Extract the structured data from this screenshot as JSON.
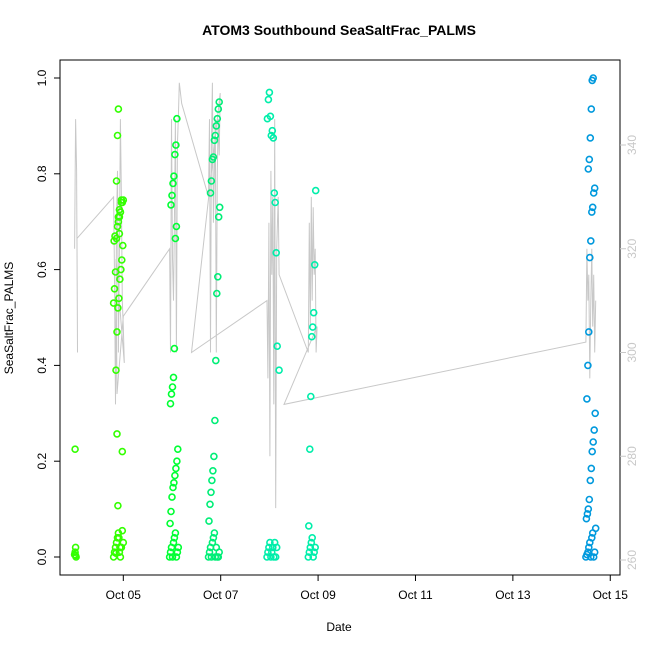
{
  "chart_data": {
    "type": "scatter",
    "title": "ATOM3 Southbound SeaSaltFrac_PALMS",
    "xlabel": "Date",
    "ylabel": "SeaSaltFrac_PALMS",
    "x_ticks": [
      "Oct 05",
      "Oct 07",
      "Oct 09",
      "Oct 11",
      "Oct 13",
      "Oct 15"
    ],
    "x_tick_days": [
      5,
      7,
      9,
      11,
      13,
      15
    ],
    "xlim_days": [
      3.7,
      15.2
    ],
    "ylim": [
      0,
      1
    ],
    "y_ticks": [
      "0.0",
      "0.2",
      "0.4",
      "0.6",
      "0.8",
      "1.0"
    ],
    "y2_ticks": [
      "260",
      "280",
      "300",
      "320",
      "340"
    ],
    "y2lim": [
      258,
      358
    ],
    "grid": false,
    "colors": {
      "seg1": "#33ff00",
      "seg2": "#00ff33",
      "seg3": "#00ee77",
      "seg4": "#00eeaa",
      "seg5": "#0099dd",
      "line": "#c8c8c8",
      "axis": "#000000",
      "right_axis": "#c8c8c8"
    },
    "series": [
      {
        "color_key": "seg1",
        "x": [
          4.0,
          4.01,
          4.02,
          4.03,
          4.01,
          4.02,
          4.8,
          4.82,
          4.84,
          4.86,
          4.88,
          4.9,
          4.92,
          4.94,
          4.96,
          4.98,
          4.85,
          4.87,
          4.89,
          4.91,
          4.93,
          4.95,
          4.97,
          4.99,
          4.81,
          4.83,
          4.9,
          4.92,
          4.94,
          4.96,
          4.98,
          5.0,
          4.86,
          4.88,
          4.9,
          4.92,
          4.8,
          4.82,
          4.84,
          4.86,
          4.88,
          4.9,
          4.92,
          4.94,
          4.96,
          4.98,
          5.0,
          4.87,
          4.89,
          4.91,
          4.93,
          4.85
        ],
        "y": [
          0.005,
          0.01,
          0.02,
          0.0,
          0.225,
          0.003,
          0.0,
          0.01,
          0.02,
          0.03,
          0.04,
          0.05,
          0.01,
          0.0,
          0.02,
          0.055,
          0.39,
          0.47,
          0.52,
          0.54,
          0.58,
          0.6,
          0.62,
          0.65,
          0.66,
          0.67,
          0.7,
          0.71,
          0.72,
          0.74,
          0.74,
          0.745,
          0.785,
          0.88,
          0.935,
          0.675,
          0.53,
          0.56,
          0.595,
          0.665,
          0.69,
          0.71,
          0.725,
          0.72,
          0.745,
          0.22,
          0.03,
          0.257,
          0.107,
          0.04,
          0.02,
          0.008
        ]
      },
      {
        "color_key": "seg2",
        "x": [
          5.95,
          5.97,
          5.99,
          6.01,
          6.03,
          6.05,
          6.07,
          6.09,
          6.11,
          6.13,
          5.96,
          5.98,
          6.0,
          6.02,
          6.04,
          6.06,
          6.08,
          6.1,
          6.12,
          5.97,
          5.99,
          6.01,
          6.03,
          6.05,
          6.07,
          6.09,
          5.98,
          6.0,
          6.02,
          6.04,
          6.06,
          6.08,
          6.1
        ],
        "y": [
          0.0,
          0.01,
          0.02,
          0.0,
          0.03,
          0.04,
          0.05,
          0.0,
          0.01,
          0.02,
          0.07,
          0.095,
          0.125,
          0.145,
          0.155,
          0.17,
          0.185,
          0.2,
          0.225,
          0.32,
          0.34,
          0.355,
          0.375,
          0.435,
          0.665,
          0.69,
          0.735,
          0.755,
          0.78,
          0.795,
          0.84,
          0.86,
          0.915
        ]
      },
      {
        "color_key": "seg3",
        "x": [
          6.75,
          6.77,
          6.79,
          6.81,
          6.83,
          6.85,
          6.87,
          6.89,
          6.91,
          6.93,
          6.95,
          6.97,
          6.76,
          6.78,
          6.8,
          6.82,
          6.84,
          6.86,
          6.88,
          6.9,
          6.92,
          6.94,
          6.96,
          6.98,
          6.79,
          6.81,
          6.83,
          6.85,
          6.87,
          6.89,
          6.91,
          6.93,
          6.95,
          6.97
        ],
        "y": [
          0.0,
          0.01,
          0.02,
          0.0,
          0.03,
          0.04,
          0.05,
          0.0,
          0.02,
          0.0,
          0.0,
          0.01,
          0.075,
          0.11,
          0.135,
          0.16,
          0.18,
          0.21,
          0.285,
          0.41,
          0.55,
          0.585,
          0.71,
          0.73,
          0.76,
          0.785,
          0.83,
          0.835,
          0.87,
          0.88,
          0.9,
          0.915,
          0.935,
          0.95
        ]
      },
      {
        "color_key": "seg4",
        "x": [
          7.95,
          7.97,
          7.99,
          8.01,
          8.03,
          8.05,
          8.07,
          8.09,
          8.11,
          8.13,
          8.15,
          7.96,
          7.98,
          8.0,
          8.02,
          8.04,
          8.06,
          8.08,
          8.1,
          8.12,
          8.14,
          8.16,
          8.2,
          8.8,
          8.82,
          8.84,
          8.86,
          8.88,
          8.9,
          8.92,
          8.94,
          8.81,
          8.83,
          8.85,
          8.87,
          8.89,
          8.91,
          8.93,
          8.95
        ],
        "y": [
          0.0,
          0.01,
          0.02,
          0.03,
          0.0,
          0.01,
          0.02,
          0.0,
          0.03,
          0.0,
          0.02,
          0.915,
          0.955,
          0.97,
          0.92,
          0.88,
          0.89,
          0.875,
          0.76,
          0.74,
          0.635,
          0.44,
          0.39,
          0.0,
          0.01,
          0.02,
          0.03,
          0.04,
          0.0,
          0.01,
          0.02,
          0.065,
          0.225,
          0.335,
          0.46,
          0.48,
          0.51,
          0.61,
          0.765
        ]
      },
      {
        "color_key": "seg5",
        "x": [
          14.5,
          14.52,
          14.54,
          14.56,
          14.58,
          14.6,
          14.62,
          14.64,
          14.66,
          14.68,
          14.7,
          14.51,
          14.53,
          14.55,
          14.57,
          14.59,
          14.61,
          14.63,
          14.65,
          14.67,
          14.69,
          14.52,
          14.54,
          14.56,
          14.58,
          14.6,
          14.62,
          14.64,
          14.66,
          14.68,
          14.55,
          14.57,
          14.59,
          14.61,
          14.63,
          14.65
        ],
        "y": [
          0.0,
          0.005,
          0.01,
          0.02,
          0.03,
          0.0,
          0.04,
          0.05,
          0.0,
          0.01,
          0.06,
          0.08,
          0.09,
          0.1,
          0.12,
          0.16,
          0.185,
          0.22,
          0.24,
          0.265,
          0.3,
          0.33,
          0.4,
          0.47,
          0.625,
          0.66,
          0.72,
          0.73,
          0.76,
          0.77,
          0.81,
          0.83,
          0.875,
          0.935,
          0.995,
          1.0
        ]
      }
    ],
    "line_series": {
      "name": "",
      "x": [
        4.0,
        4.02,
        4.04,
        4.06,
        4.05,
        4.8,
        4.82,
        4.84,
        4.86,
        4.88,
        4.9,
        4.92,
        4.94,
        4.96,
        4.98,
        5.0,
        5.02,
        4.85,
        4.87,
        5.0,
        5.95,
        5.97,
        5.99,
        6.01,
        6.03,
        6.05,
        6.07,
        6.09,
        6.11,
        6.13,
        6.15,
        6.2,
        6.75,
        6.77,
        6.79,
        6.81,
        6.83,
        6.85,
        6.87,
        6.89,
        6.91,
        6.93,
        6.95,
        6.97,
        6.99,
        6.4,
        7.95,
        7.97,
        7.99,
        8.01,
        8.03,
        8.05,
        8.07,
        8.09,
        8.11,
        8.13,
        8.15,
        8.18,
        8.2,
        8.8,
        8.82,
        8.84,
        8.86,
        8.88,
        8.9,
        8.92,
        8.94,
        8.96,
        8.98,
        8.3,
        14.5,
        14.52,
        14.54,
        14.56,
        14.58,
        14.6,
        14.62,
        14.64,
        14.66,
        14.68,
        14.7
      ],
      "y": [
        320,
        345,
        335,
        300,
        322,
        330,
        315,
        290,
        325,
        335,
        300,
        320,
        345,
        330,
        310,
        305,
        298,
        318,
        292,
        307,
        320,
        300,
        345,
        318,
        310,
        325,
        345,
        300,
        340,
        345,
        352,
        348,
        330,
        345,
        300,
        340,
        352,
        325,
        335,
        345,
        300,
        335,
        345,
        338,
        350,
        300,
        310,
        295,
        325,
        280,
        335,
        315,
        330,
        290,
        345,
        270,
        320,
        330,
        315,
        300,
        325,
        305,
        330,
        310,
        328,
        315,
        320,
        300,
        305,
        290,
        302,
        320,
        310,
        315,
        295,
        310,
        320,
        305,
        315,
        300,
        310
      ]
    }
  }
}
